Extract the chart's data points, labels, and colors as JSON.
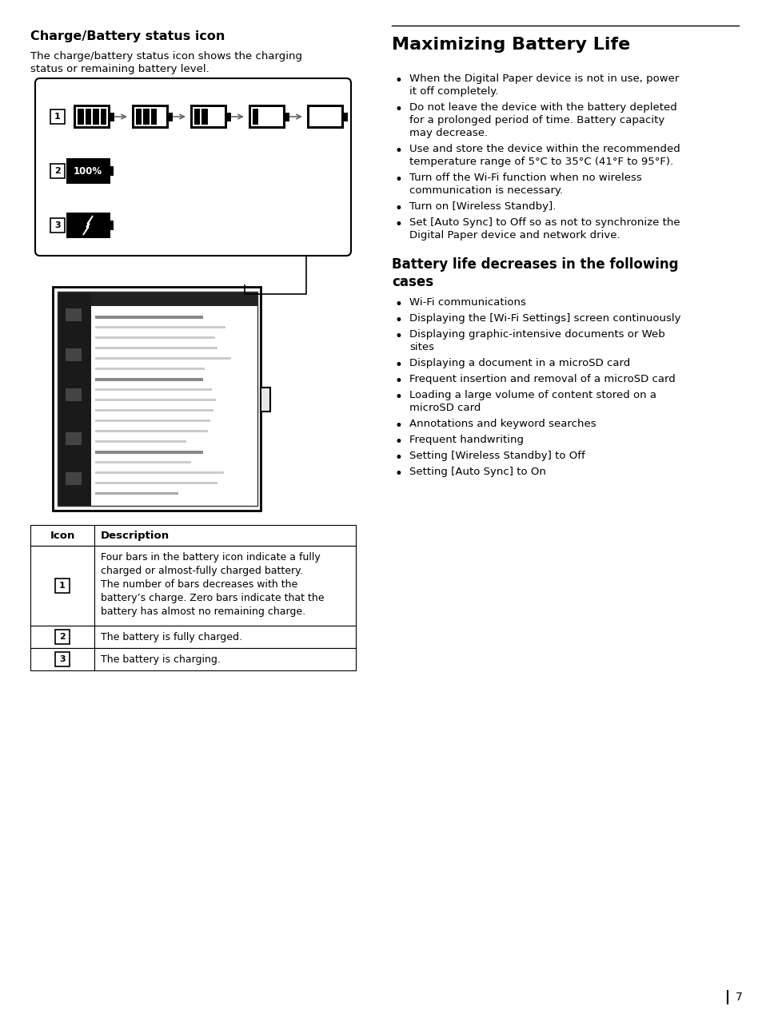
{
  "bg_color": "#ffffff",
  "page_number": "7",
  "left_section_title": "Charge/Battery status icon",
  "left_section_body": "The charge/battery status icon shows the charging\nstatus or remaining battery level.",
  "right_section_title": "Maximizing Battery Life",
  "right_bullets_1": [
    [
      "When the Digital Paper device is not in use, power",
      "it off completely."
    ],
    [
      "Do not leave the device with the battery depleted",
      "for a prolonged period of time. Battery capacity",
      "may decrease."
    ],
    [
      "Use and store the device within the recommended",
      "temperature range of 5°C to 35°C (41°F to 95°F)."
    ],
    [
      "Turn off the Wi-Fi function when no wireless",
      "communication is necessary."
    ],
    [
      "Turn on [Wireless Standby]."
    ],
    [
      "Set [Auto Sync] to Off so as not to synchronize the",
      "Digital Paper device and network drive."
    ]
  ],
  "right_section_title2_line1": "Battery life decreases in the following",
  "right_section_title2_line2": "cases",
  "right_bullets_2": [
    [
      "Wi-Fi communications"
    ],
    [
      "Displaying the [Wi-Fi Settings] screen continuously"
    ],
    [
      "Displaying graphic-intensive documents or Web",
      "sites"
    ],
    [
      "Displaying a document in a microSD card"
    ],
    [
      "Frequent insertion and removal of a microSD card"
    ],
    [
      "Loading a large volume of content stored on a",
      "microSD card"
    ],
    [
      "Annotations and keyword searches"
    ],
    [
      "Frequent handwriting"
    ],
    [
      "Setting [Wireless Standby] to Off"
    ],
    [
      "Setting [Auto Sync] to On"
    ]
  ],
  "table_headers": [
    "Icon",
    "Description"
  ],
  "table_row1_text": "Four bars in the battery icon indicate a fully\ncharged or almost-fully charged battery.\nThe number of bars decreases with the\nbattery’s charge. Zero bars indicate that the\nbattery has almost no remaining charge.",
  "table_row2_text": "The battery is fully charged.",
  "table_row3_text": "The battery is charging."
}
